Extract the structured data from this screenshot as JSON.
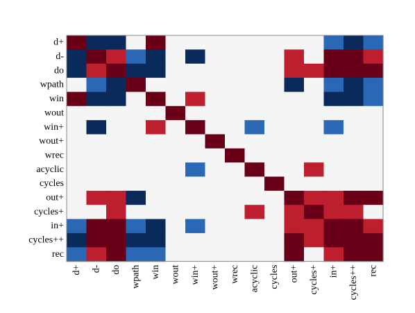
{
  "chart_data": {
    "type": "heatmap",
    "title": "",
    "xlabel": "",
    "ylabel": "",
    "categories": [
      "d+",
      "d-",
      "do",
      "wpath",
      "win",
      "wout",
      "win+",
      "wout+",
      "wrec",
      "acyclic",
      "cycles",
      "out+",
      "cycles+",
      "in+",
      "cycles++",
      "rec"
    ],
    "value_scale": {
      "min": -1,
      "max": 1,
      "neutral": 0
    },
    "colors": {
      "strong_negative": "#0b2a5c",
      "medium_negative": "#2a68b6",
      "neutral": "#f5f5f5",
      "medium_positive": "#bd1f2e",
      "strong_positive": "#6a0017"
    },
    "grid": false,
    "legend": "none",
    "values": [
      [
        1,
        -1,
        -1,
        0,
        1,
        0,
        0,
        0,
        0,
        0,
        0,
        0,
        0,
        -0.6,
        -1,
        -0.6
      ],
      [
        -1,
        1,
        0.6,
        -0.6,
        -1,
        0,
        -1,
        0,
        0,
        0,
        0,
        0.6,
        0,
        1,
        1,
        0.6
      ],
      [
        -1,
        0.6,
        1,
        -1,
        -1,
        0,
        0,
        0,
        0,
        0,
        0,
        0.6,
        0.6,
        1,
        1,
        1
      ],
      [
        0,
        -0.6,
        -1,
        1,
        0,
        0,
        0,
        0,
        0,
        0,
        0,
        -1,
        0,
        -0.6,
        -1,
        -0.6
      ],
      [
        1,
        -1,
        -1,
        0,
        1,
        0,
        0.6,
        0,
        0,
        0,
        0,
        0,
        0,
        -1,
        -1,
        -0.6
      ],
      [
        0,
        0,
        0,
        0,
        0,
        1,
        0,
        0,
        0,
        0,
        0,
        0,
        0,
        0,
        0,
        0
      ],
      [
        0,
        -1,
        0,
        0,
        0.6,
        0,
        1,
        0,
        0,
        -0.6,
        0,
        0,
        0,
        -0.6,
        0,
        0
      ],
      [
        0,
        0,
        0,
        0,
        0,
        0,
        0,
        1,
        0,
        0,
        0,
        0,
        0,
        0,
        0,
        0
      ],
      [
        0,
        0,
        0,
        0,
        0,
        0,
        0,
        0,
        1,
        0,
        0,
        0,
        0,
        0,
        0,
        0
      ],
      [
        0,
        0,
        0,
        0,
        0,
        0,
        -0.6,
        0,
        0,
        1,
        0,
        0,
        0.6,
        0,
        0,
        0
      ],
      [
        0,
        0,
        0,
        0,
        0,
        0,
        0,
        0,
        0,
        0,
        1,
        0,
        0,
        0,
        0,
        0
      ],
      [
        0,
        0.6,
        0.6,
        -1,
        0,
        0,
        0,
        0,
        0,
        0,
        0,
        1,
        0.6,
        0.6,
        1,
        1
      ],
      [
        0,
        0,
        0.6,
        0,
        0,
        0,
        0,
        0,
        0,
        0.6,
        0,
        0.6,
        1,
        0.6,
        0.6,
        0
      ],
      [
        -0.6,
        1,
        1,
        -0.6,
        -1,
        0,
        -0.6,
        0,
        0,
        0,
        0,
        0.6,
        0.6,
        1,
        1,
        0.6
      ],
      [
        -1,
        1,
        1,
        -1,
        -1,
        0,
        0,
        0,
        0,
        0,
        0,
        1,
        0.6,
        1,
        1,
        1
      ],
      [
        -0.6,
        0.6,
        1,
        -0.6,
        -0.6,
        0,
        0,
        0,
        0,
        0,
        0,
        1,
        0,
        0.6,
        1,
        1
      ]
    ]
  }
}
